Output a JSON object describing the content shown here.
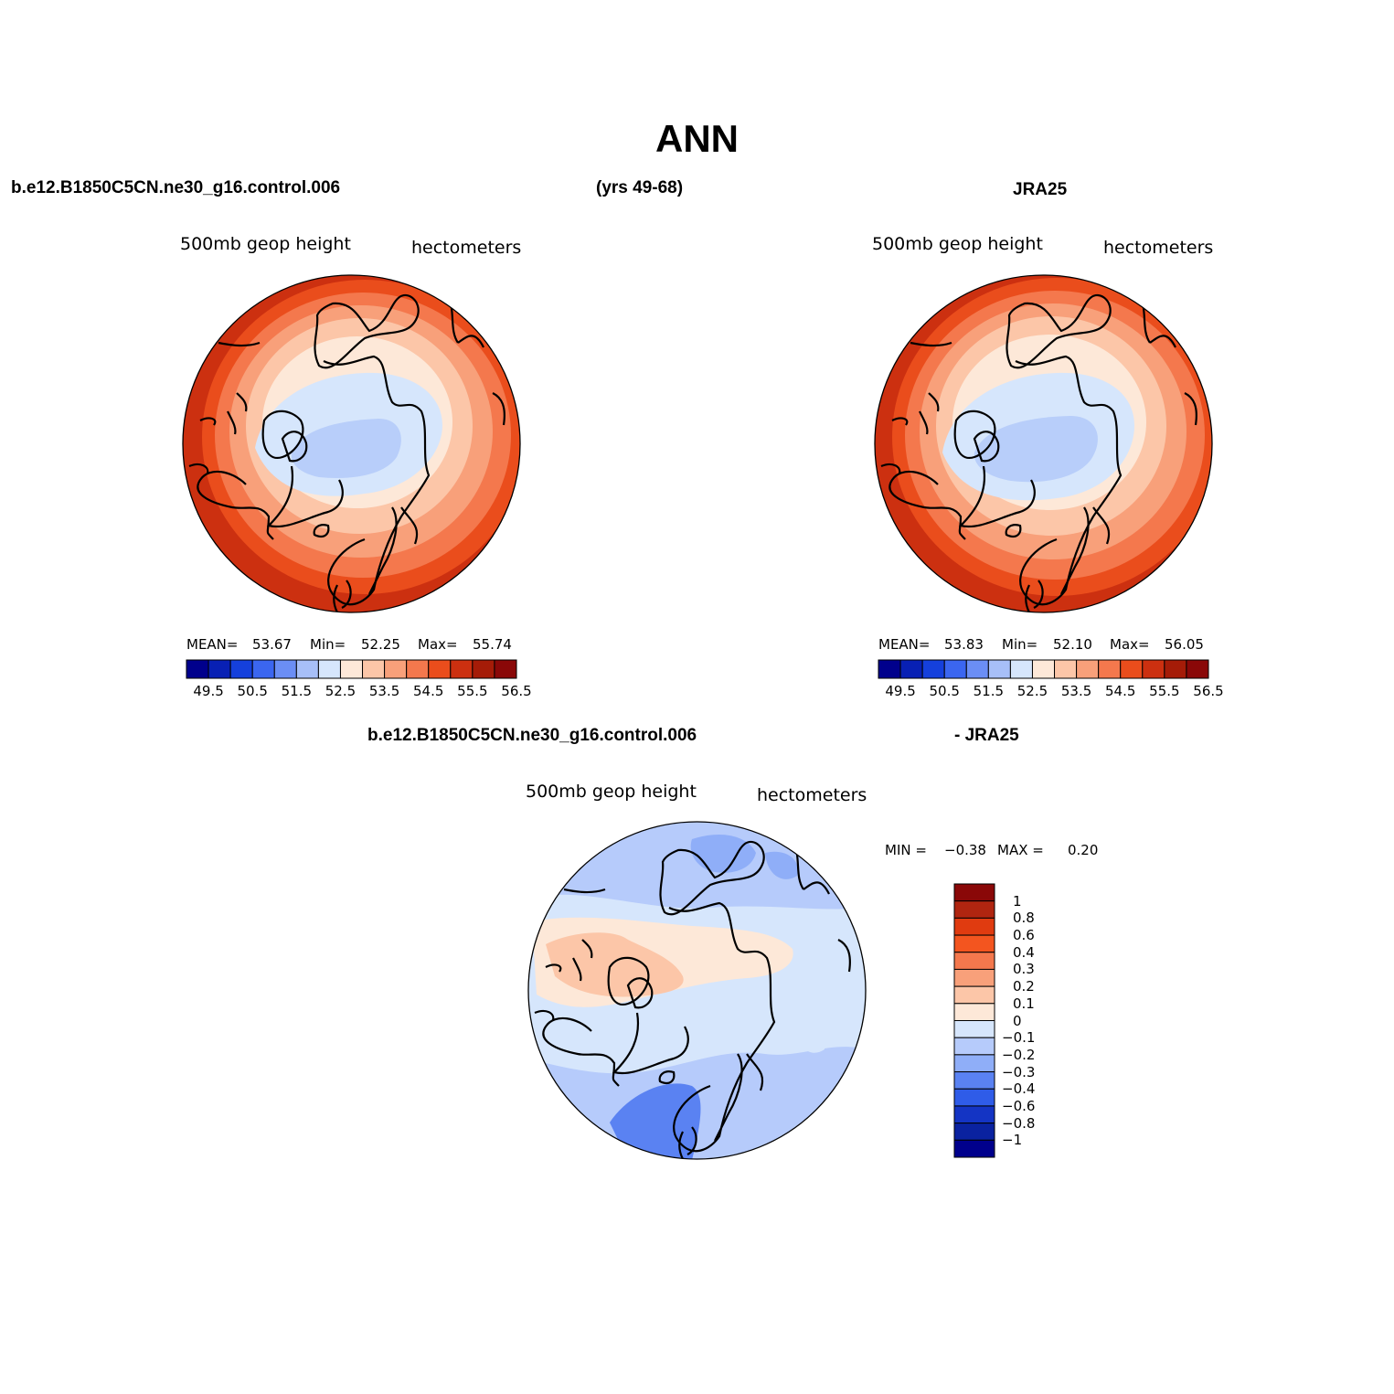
{
  "page": {
    "title": "ANN",
    "top_left": "b.e12.B1850C5CN.ne30_g16.control.006",
    "top_center": "(yrs 49-68)",
    "top_right": "JRA25",
    "bottom_left": "b.e12.B1850C5CN.ne30_g16.control.006",
    "bottom_right": "- JRA25"
  },
  "panels": {
    "model": {
      "variable": "500mb geop height",
      "units": "hectometers",
      "stats_text": {
        "mean_label": "MEAN=",
        "mean": "53.67",
        "min_label": "Min=",
        "min": "52.25",
        "max_label": "Max=",
        "max": "55.74"
      }
    },
    "obs": {
      "variable": "500mb geop height",
      "units": "hectometers",
      "stats_text": {
        "mean_label": "MEAN=",
        "mean": "53.83",
        "min_label": "Min=",
        "min": "52.10",
        "max_label": "Max=",
        "max": "56.05"
      }
    },
    "diff": {
      "variable": "500mb geop height",
      "units": "hectometers",
      "minmax": {
        "min_label": "MIN =",
        "min": "−0.38",
        "max_label": "MAX =",
        "max": "0.20"
      }
    }
  },
  "colorbar_horizontal": {
    "colors": [
      "#00008c",
      "#0820b4",
      "#1540dc",
      "#3b66f0",
      "#6b8ef5",
      "#a7bff8",
      "#d6e6fc",
      "#fde8d8",
      "#fcc6a8",
      "#f8a07a",
      "#f4784d",
      "#ea4d1c",
      "#cc3010",
      "#a51c08",
      "#8a0808"
    ],
    "tick_labels": [
      "49.5",
      "50.5",
      "51.5",
      "52.5",
      "53.5",
      "54.5",
      "55.5",
      "56.5"
    ]
  },
  "colorbar_vertical": {
    "colors_top_to_bottom": [
      "#8a0808",
      "#b02510",
      "#e03b10",
      "#f3551f",
      "#f4784d",
      "#f8a07a",
      "#fcc6a8",
      "#fde8d8",
      "#d6e6fc",
      "#b6cbfb",
      "#8faef8",
      "#5a82f2",
      "#2f5ce8",
      "#1434c4",
      "#0a22a0",
      "#00008c"
    ],
    "tick_labels": [
      "1",
      "0.8",
      "0.6",
      "0.4",
      "0.3",
      "0.2",
      "0.1",
      "0",
      "−0.1",
      "−0.2",
      "−0.3",
      "−0.4",
      "−0.6",
      "−0.8",
      "−1"
    ]
  },
  "chart_data": [
    {
      "type": "polar stereographic contour map",
      "panel": "model",
      "variable": "500mb geop height",
      "units": "hectometers",
      "contour_levels": [
        49.5,
        50,
        50.5,
        51,
        51.5,
        52,
        52.5,
        53,
        53.5,
        54,
        54.5,
        55,
        55.5,
        56,
        56.5
      ],
      "mean": 53.67,
      "min": 52.25,
      "max": 55.74
    },
    {
      "type": "polar stereographic contour map",
      "panel": "obs",
      "variable": "500mb geop height",
      "units": "hectometers",
      "contour_levels": [
        49.5,
        50,
        50.5,
        51,
        51.5,
        52,
        52.5,
        53,
        53.5,
        54,
        54.5,
        55,
        55.5,
        56,
        56.5
      ],
      "mean": 53.83,
      "min": 52.1,
      "max": 56.05
    },
    {
      "type": "polar stereographic contour map (difference)",
      "panel": "diff",
      "variable": "500mb geop height",
      "units": "hectometers",
      "contour_levels": [
        -1,
        -0.8,
        -0.6,
        -0.4,
        -0.3,
        -0.2,
        -0.1,
        0,
        0.1,
        0.2,
        0.3,
        0.4,
        0.6,
        0.8,
        1
      ],
      "min": -0.38,
      "max": 0.2
    }
  ]
}
